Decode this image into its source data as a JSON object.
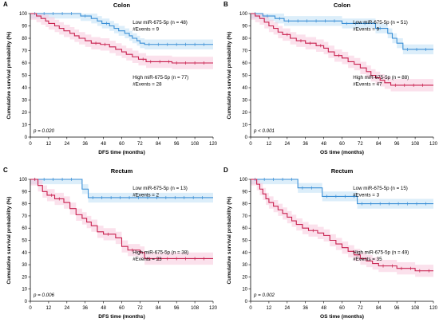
{
  "colors": {
    "low": "#3a8fd6",
    "high": "#c8204e",
    "ci_low": "#bfe0f5",
    "ci_high": "#f7c9dd",
    "axis": "#000000"
  },
  "chart_data": [
    {
      "type": "line",
      "panel": "A",
      "title": "Colon",
      "xlabel": "DFS time (months)",
      "ylabel": "Cumulative survival probability (%)",
      "xlim": [
        0,
        120
      ],
      "ylim": [
        0,
        100
      ],
      "xticks": [
        0,
        12,
        24,
        36,
        48,
        60,
        72,
        84,
        96,
        108,
        120
      ],
      "yticks": [
        0,
        10,
        20,
        30,
        40,
        50,
        60,
        70,
        80,
        90,
        100
      ],
      "p_value": "p = 0.020",
      "series": [
        {
          "group": "low",
          "label": "Low miR-675-5p (n = 48)",
          "events_label": "#Events = 9",
          "steps": [
            [
              0,
              100
            ],
            [
              33,
              98
            ],
            [
              40,
              96
            ],
            [
              44,
              94
            ],
            [
              47,
              92
            ],
            [
              52,
              90
            ],
            [
              55,
              88
            ],
            [
              58,
              86
            ],
            [
              62,
              84
            ],
            [
              65,
              82
            ],
            [
              67,
              80
            ],
            [
              70,
              78
            ],
            [
              72,
              76
            ],
            [
              75,
              75
            ],
            [
              120,
              75
            ]
          ]
        },
        {
          "group": "high",
          "label": "High miR-675-5p (n = 77)",
          "events_label": "#Events = 28",
          "steps": [
            [
              0,
              100
            ],
            [
              4,
              98
            ],
            [
              7,
              96
            ],
            [
              10,
              94
            ],
            [
              12,
              92
            ],
            [
              16,
              90
            ],
            [
              19,
              88
            ],
            [
              22,
              86
            ],
            [
              26,
              84
            ],
            [
              29,
              82
            ],
            [
              32,
              80
            ],
            [
              36,
              78
            ],
            [
              40,
              76
            ],
            [
              46,
              75
            ],
            [
              52,
              73
            ],
            [
              56,
              71
            ],
            [
              60,
              69
            ],
            [
              63,
              67
            ],
            [
              67,
              65
            ],
            [
              71,
              63
            ],
            [
              76,
              61
            ],
            [
              93,
              60
            ],
            [
              120,
              60
            ]
          ]
        }
      ]
    },
    {
      "type": "line",
      "panel": "B",
      "title": "Colon",
      "xlabel": "OS time (months)",
      "ylabel": "Cumulative survival probability (%)",
      "xlim": [
        0,
        120
      ],
      "ylim": [
        0,
        100
      ],
      "xticks": [
        0,
        12,
        24,
        36,
        48,
        60,
        72,
        84,
        96,
        108,
        120
      ],
      "yticks": [
        0,
        10,
        20,
        30,
        40,
        50,
        60,
        70,
        80,
        90,
        100
      ],
      "p_value": "p < 0.001",
      "series": [
        {
          "group": "low",
          "label": "Low miR-675-5p (n = 51)",
          "events_label": "#Events = 9",
          "steps": [
            [
              0,
              100
            ],
            [
              8,
              98
            ],
            [
              16,
              96
            ],
            [
              22,
              94
            ],
            [
              60,
              92
            ],
            [
              82,
              88
            ],
            [
              90,
              84
            ],
            [
              93,
              80
            ],
            [
              96,
              76
            ],
            [
              100,
              71
            ],
            [
              120,
              71
            ]
          ]
        },
        {
          "group": "high",
          "label": "High miR-675-5p (n = 88)",
          "events_label": "#Events = 47",
          "steps": [
            [
              0,
              100
            ],
            [
              3,
              98
            ],
            [
              6,
              96
            ],
            [
              9,
              93
            ],
            [
              12,
              90
            ],
            [
              15,
              88
            ],
            [
              18,
              85
            ],
            [
              21,
              83
            ],
            [
              26,
              80
            ],
            [
              30,
              78
            ],
            [
              36,
              76
            ],
            [
              43,
              74
            ],
            [
              48,
              72
            ],
            [
              51,
              69
            ],
            [
              55,
              66
            ],
            [
              60,
              64
            ],
            [
              64,
              61
            ],
            [
              68,
              59
            ],
            [
              72,
              56
            ],
            [
              76,
              53
            ],
            [
              79,
              50
            ],
            [
              82,
              48
            ],
            [
              85,
              46
            ],
            [
              88,
              44
            ],
            [
              92,
              42
            ],
            [
              120,
              42
            ]
          ]
        }
      ]
    },
    {
      "type": "line",
      "panel": "C",
      "title": "Rectum",
      "xlabel": "DFS time (months)",
      "ylabel": "Cumulative survival probability (%)",
      "xlim": [
        0,
        120
      ],
      "ylim": [
        0,
        100
      ],
      "xticks": [
        0,
        12,
        24,
        36,
        48,
        60,
        72,
        84,
        96,
        108,
        120
      ],
      "yticks": [
        0,
        10,
        20,
        30,
        40,
        50,
        60,
        70,
        80,
        90,
        100
      ],
      "p_value": "p = 0.006",
      "series": [
        {
          "group": "low",
          "label": "Low miR-675-5p (n = 13)",
          "events_label": "#Events = 2",
          "steps": [
            [
              0,
              100
            ],
            [
              34,
              92
            ],
            [
              38,
              85
            ],
            [
              120,
              85
            ]
          ]
        },
        {
          "group": "high",
          "label": "High miR-675-5p (n = 38)",
          "events_label": "#Events = 23",
          "steps": [
            [
              0,
              100
            ],
            [
              5,
              95
            ],
            [
              8,
              90
            ],
            [
              11,
              87
            ],
            [
              16,
              84
            ],
            [
              22,
              81
            ],
            [
              26,
              76
            ],
            [
              30,
              71
            ],
            [
              34,
              68
            ],
            [
              37,
              65
            ],
            [
              40,
              62
            ],
            [
              44,
              57
            ],
            [
              48,
              55
            ],
            [
              56,
              52
            ],
            [
              60,
              45
            ],
            [
              64,
              42
            ],
            [
              72,
              40
            ],
            [
              75,
              35
            ],
            [
              120,
              35
            ]
          ]
        }
      ]
    },
    {
      "type": "line",
      "panel": "D",
      "title": "Rectum",
      "xlabel": "OS time (months)",
      "ylabel": "Cumulative survival probability (%)",
      "xlim": [
        0,
        120
      ],
      "ylim": [
        0,
        100
      ],
      "xticks": [
        0,
        12,
        24,
        36,
        48,
        60,
        72,
        84,
        96,
        108,
        120
      ],
      "yticks": [
        0,
        10,
        20,
        30,
        40,
        50,
        60,
        70,
        80,
        90,
        100
      ],
      "p_value": "p = 0.002",
      "series": [
        {
          "group": "low",
          "label": "Low miR-675-5p (n = 15)",
          "events_label": "#Events = 3",
          "steps": [
            [
              0,
              100
            ],
            [
              31,
              93
            ],
            [
              47,
              86
            ],
            [
              70,
              80
            ],
            [
              120,
              80
            ]
          ]
        },
        {
          "group": "high",
          "label": "High miR-675-5p (n = 49)",
          "events_label": "#Events = 35",
          "steps": [
            [
              0,
              100
            ],
            [
              4,
              96
            ],
            [
              6,
              92
            ],
            [
              8,
              88
            ],
            [
              10,
              84
            ],
            [
              12,
              81
            ],
            [
              15,
              78
            ],
            [
              18,
              75
            ],
            [
              21,
              72
            ],
            [
              24,
              69
            ],
            [
              27,
              66
            ],
            [
              30,
              63
            ],
            [
              34,
              60
            ],
            [
              38,
              58
            ],
            [
              44,
              56
            ],
            [
              48,
              54
            ],
            [
              52,
              50
            ],
            [
              56,
              47
            ],
            [
              60,
              44
            ],
            [
              64,
              41
            ],
            [
              68,
              38
            ],
            [
              72,
              35
            ],
            [
              76,
              33
            ],
            [
              80,
              31
            ],
            [
              84,
              29
            ],
            [
              96,
              27
            ],
            [
              108,
              25
            ],
            [
              120,
              25
            ]
          ]
        }
      ]
    }
  ]
}
